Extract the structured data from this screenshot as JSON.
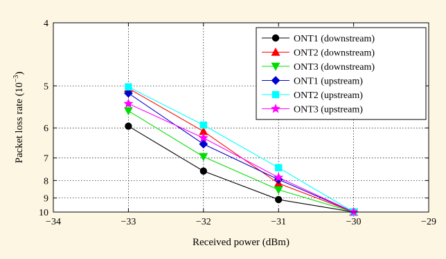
{
  "page": {
    "background": "#fdf6e3"
  },
  "chart_data": {
    "type": "line",
    "title": "",
    "xlabel": "Received power (dBm)",
    "ylabel": "Packet loss rate (10",
    "ylabel_exponent": "−3",
    "ylabel_suffix": ")",
    "xlim": [
      -34,
      -29
    ],
    "ylim": [
      10,
      4
    ],
    "y_scale": "reciprocal",
    "x_ticks": [
      -34,
      -33,
      -32,
      -31,
      -30,
      -29
    ],
    "x_tick_labels": [
      "−34",
      "−33",
      "−32",
      "−31",
      "−30",
      "−29"
    ],
    "y_ticks": [
      4,
      5,
      6,
      7,
      8,
      9,
      10
    ],
    "y_tick_labels": [
      "4",
      "5",
      "6",
      "7",
      "8",
      "9",
      "10"
    ],
    "grid": true,
    "legend_position": "top-right",
    "x": [
      -33,
      -32,
      -31,
      -30
    ],
    "series": [
      {
        "name": "ONT1 (downstream)",
        "color": "#000000",
        "marker": "circle",
        "values": [
          5.95,
          7.55,
          9.1,
          10
        ]
      },
      {
        "name": "ONT2 (downstream)",
        "color": "#ff0000",
        "marker": "triangle-up",
        "values": [
          5.05,
          6.1,
          8.15,
          10
        ]
      },
      {
        "name": "ONT3 (downstream)",
        "color": "#00dd00",
        "marker": "triangle-down",
        "values": [
          5.55,
          6.95,
          8.5,
          10
        ]
      },
      {
        "name": "ONT1 (upstream)",
        "color": "#0000cc",
        "marker": "diamond",
        "values": [
          5.15,
          6.5,
          7.95,
          10
        ]
      },
      {
        "name": "ONT2 (upstream)",
        "color": "#00ffff",
        "marker": "square",
        "values": [
          5.02,
          5.92,
          7.4,
          10
        ]
      },
      {
        "name": "ONT3 (upstream)",
        "color": "#ff00ff",
        "marker": "star",
        "values": [
          5.38,
          6.3,
          7.85,
          10
        ]
      }
    ]
  }
}
